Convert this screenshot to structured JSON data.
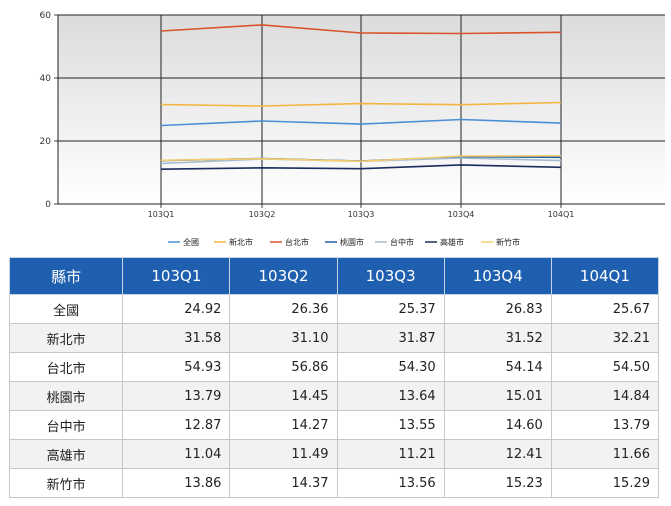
{
  "chart_data": {
    "type": "line",
    "categories": [
      "103Q1",
      "103Q2",
      "103Q3",
      "103Q4",
      "104Q1"
    ],
    "ylim": [
      0,
      60
    ],
    "yticks": [
      0,
      20,
      40,
      60
    ],
    "grid": true,
    "legend_position": "bottom",
    "series": [
      {
        "name": "全國",
        "color": "#4a8fd6",
        "values": [
          24.92,
          26.36,
          25.37,
          26.83,
          25.67
        ]
      },
      {
        "name": "新北市",
        "color": "#f3b540",
        "values": [
          31.58,
          31.1,
          31.87,
          31.52,
          32.21
        ]
      },
      {
        "name": "台北市",
        "color": "#d9532b",
        "values": [
          54.93,
          56.86,
          54.3,
          54.14,
          54.5
        ]
      },
      {
        "name": "桃園市",
        "color": "#1d5fa8",
        "values": [
          13.79,
          14.45,
          13.64,
          15.01,
          14.84
        ]
      },
      {
        "name": "台中市",
        "color": "#a6bccd",
        "values": [
          12.87,
          14.27,
          13.55,
          14.6,
          13.79
        ]
      },
      {
        "name": "高雄市",
        "color": "#1b2d5c",
        "values": [
          11.04,
          11.49,
          11.21,
          12.41,
          11.66
        ]
      },
      {
        "name": "新竹市",
        "color": "#f6cd6a",
        "values": [
          13.86,
          14.37,
          13.56,
          15.23,
          15.29
        ]
      }
    ]
  },
  "table": {
    "header_city": "縣市",
    "columns": [
      "103Q1",
      "103Q2",
      "103Q3",
      "103Q4",
      "104Q1"
    ],
    "rows": [
      {
        "city": "全國",
        "values": [
          "24.92",
          "26.36",
          "25.37",
          "26.83",
          "25.67"
        ]
      },
      {
        "city": "新北市",
        "values": [
          "31.58",
          "31.10",
          "31.87",
          "31.52",
          "32.21"
        ]
      },
      {
        "city": "台北市",
        "values": [
          "54.93",
          "56.86",
          "54.30",
          "54.14",
          "54.50"
        ]
      },
      {
        "city": "桃園市",
        "values": [
          "13.79",
          "14.45",
          "13.64",
          "15.01",
          "14.84"
        ]
      },
      {
        "city": "台中市",
        "values": [
          "12.87",
          "14.27",
          "13.55",
          "14.60",
          "13.79"
        ]
      },
      {
        "city": "高雄市",
        "values": [
          "11.04",
          "11.49",
          "11.21",
          "12.41",
          "11.66"
        ]
      },
      {
        "city": "新竹市",
        "values": [
          "13.86",
          "14.37",
          "13.56",
          "15.23",
          "15.29"
        ]
      }
    ]
  }
}
